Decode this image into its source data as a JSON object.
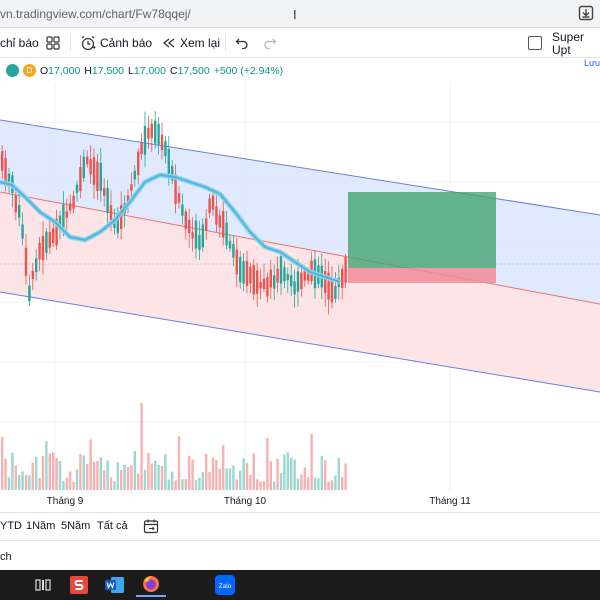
{
  "browser": {
    "url": "vn.tradingview.com/chart/Fw78qqej/"
  },
  "toolbar": {
    "indicators_label": "chỉ báo",
    "alerts_label": "Cảnh báo",
    "replay_label": "Xem lại",
    "super_label": "Super Upt",
    "super_sub": "Lưu"
  },
  "legend": {
    "badge_letter": "D",
    "open_label": "O",
    "open": "17,000",
    "high_label": "H",
    "high": "17,500",
    "low_label": "L",
    "low": "17,000",
    "close_label": "C",
    "close": "17,500",
    "change": "+500 (+2.94%)"
  },
  "colors": {
    "up": "#26a69a",
    "down": "#ef5350",
    "ma": "#4fb8dd",
    "channel_upper": "#dbe5fd",
    "channel_lower": "#fde1e4",
    "target": "#43a36e",
    "stop": "#f28b96"
  },
  "xaxis": {
    "labels": [
      "Tháng 9",
      "Tháng 10",
      "Tháng 11"
    ]
  },
  "ranges": {
    "ytd": "YTD",
    "one_year": "1Năm",
    "five_year": "5Năm",
    "all": "Tất cả"
  },
  "bottom_bar": {
    "label": "ch"
  },
  "taskbar": {
    "zalo_label": "Zalo"
  }
}
